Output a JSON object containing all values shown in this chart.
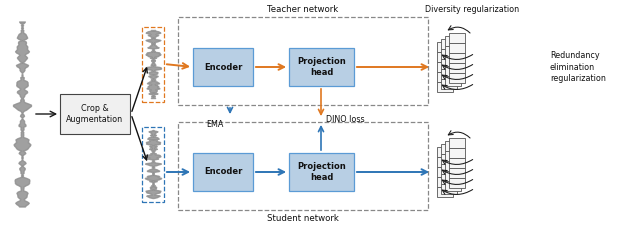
{
  "fig_width": 6.4,
  "fig_height": 2.27,
  "bg_color": "#ffffff",
  "teacher_label": "Teacher network",
  "student_label": "Student network",
  "encoder_label": "Encoder",
  "proj_label": "Projection\nhead",
  "crop_label": "Crop &\nAugmentation",
  "ema_label": "EMA",
  "dino_label": "DINO loss",
  "diversity_label": "Diversity regularization",
  "redundancy_label": "Redundancy\nelimination\nregularization",
  "box_facecolor": "#b8cfe4",
  "box_edgecolor": "#5b9bd5",
  "orange_color": "#e07820",
  "blue_color": "#2e75b6",
  "black_color": "#1a1a1a",
  "waveform_color": "#909090",
  "crop_box_fc": "#f0f0f0",
  "crop_box_ec": "#444444"
}
